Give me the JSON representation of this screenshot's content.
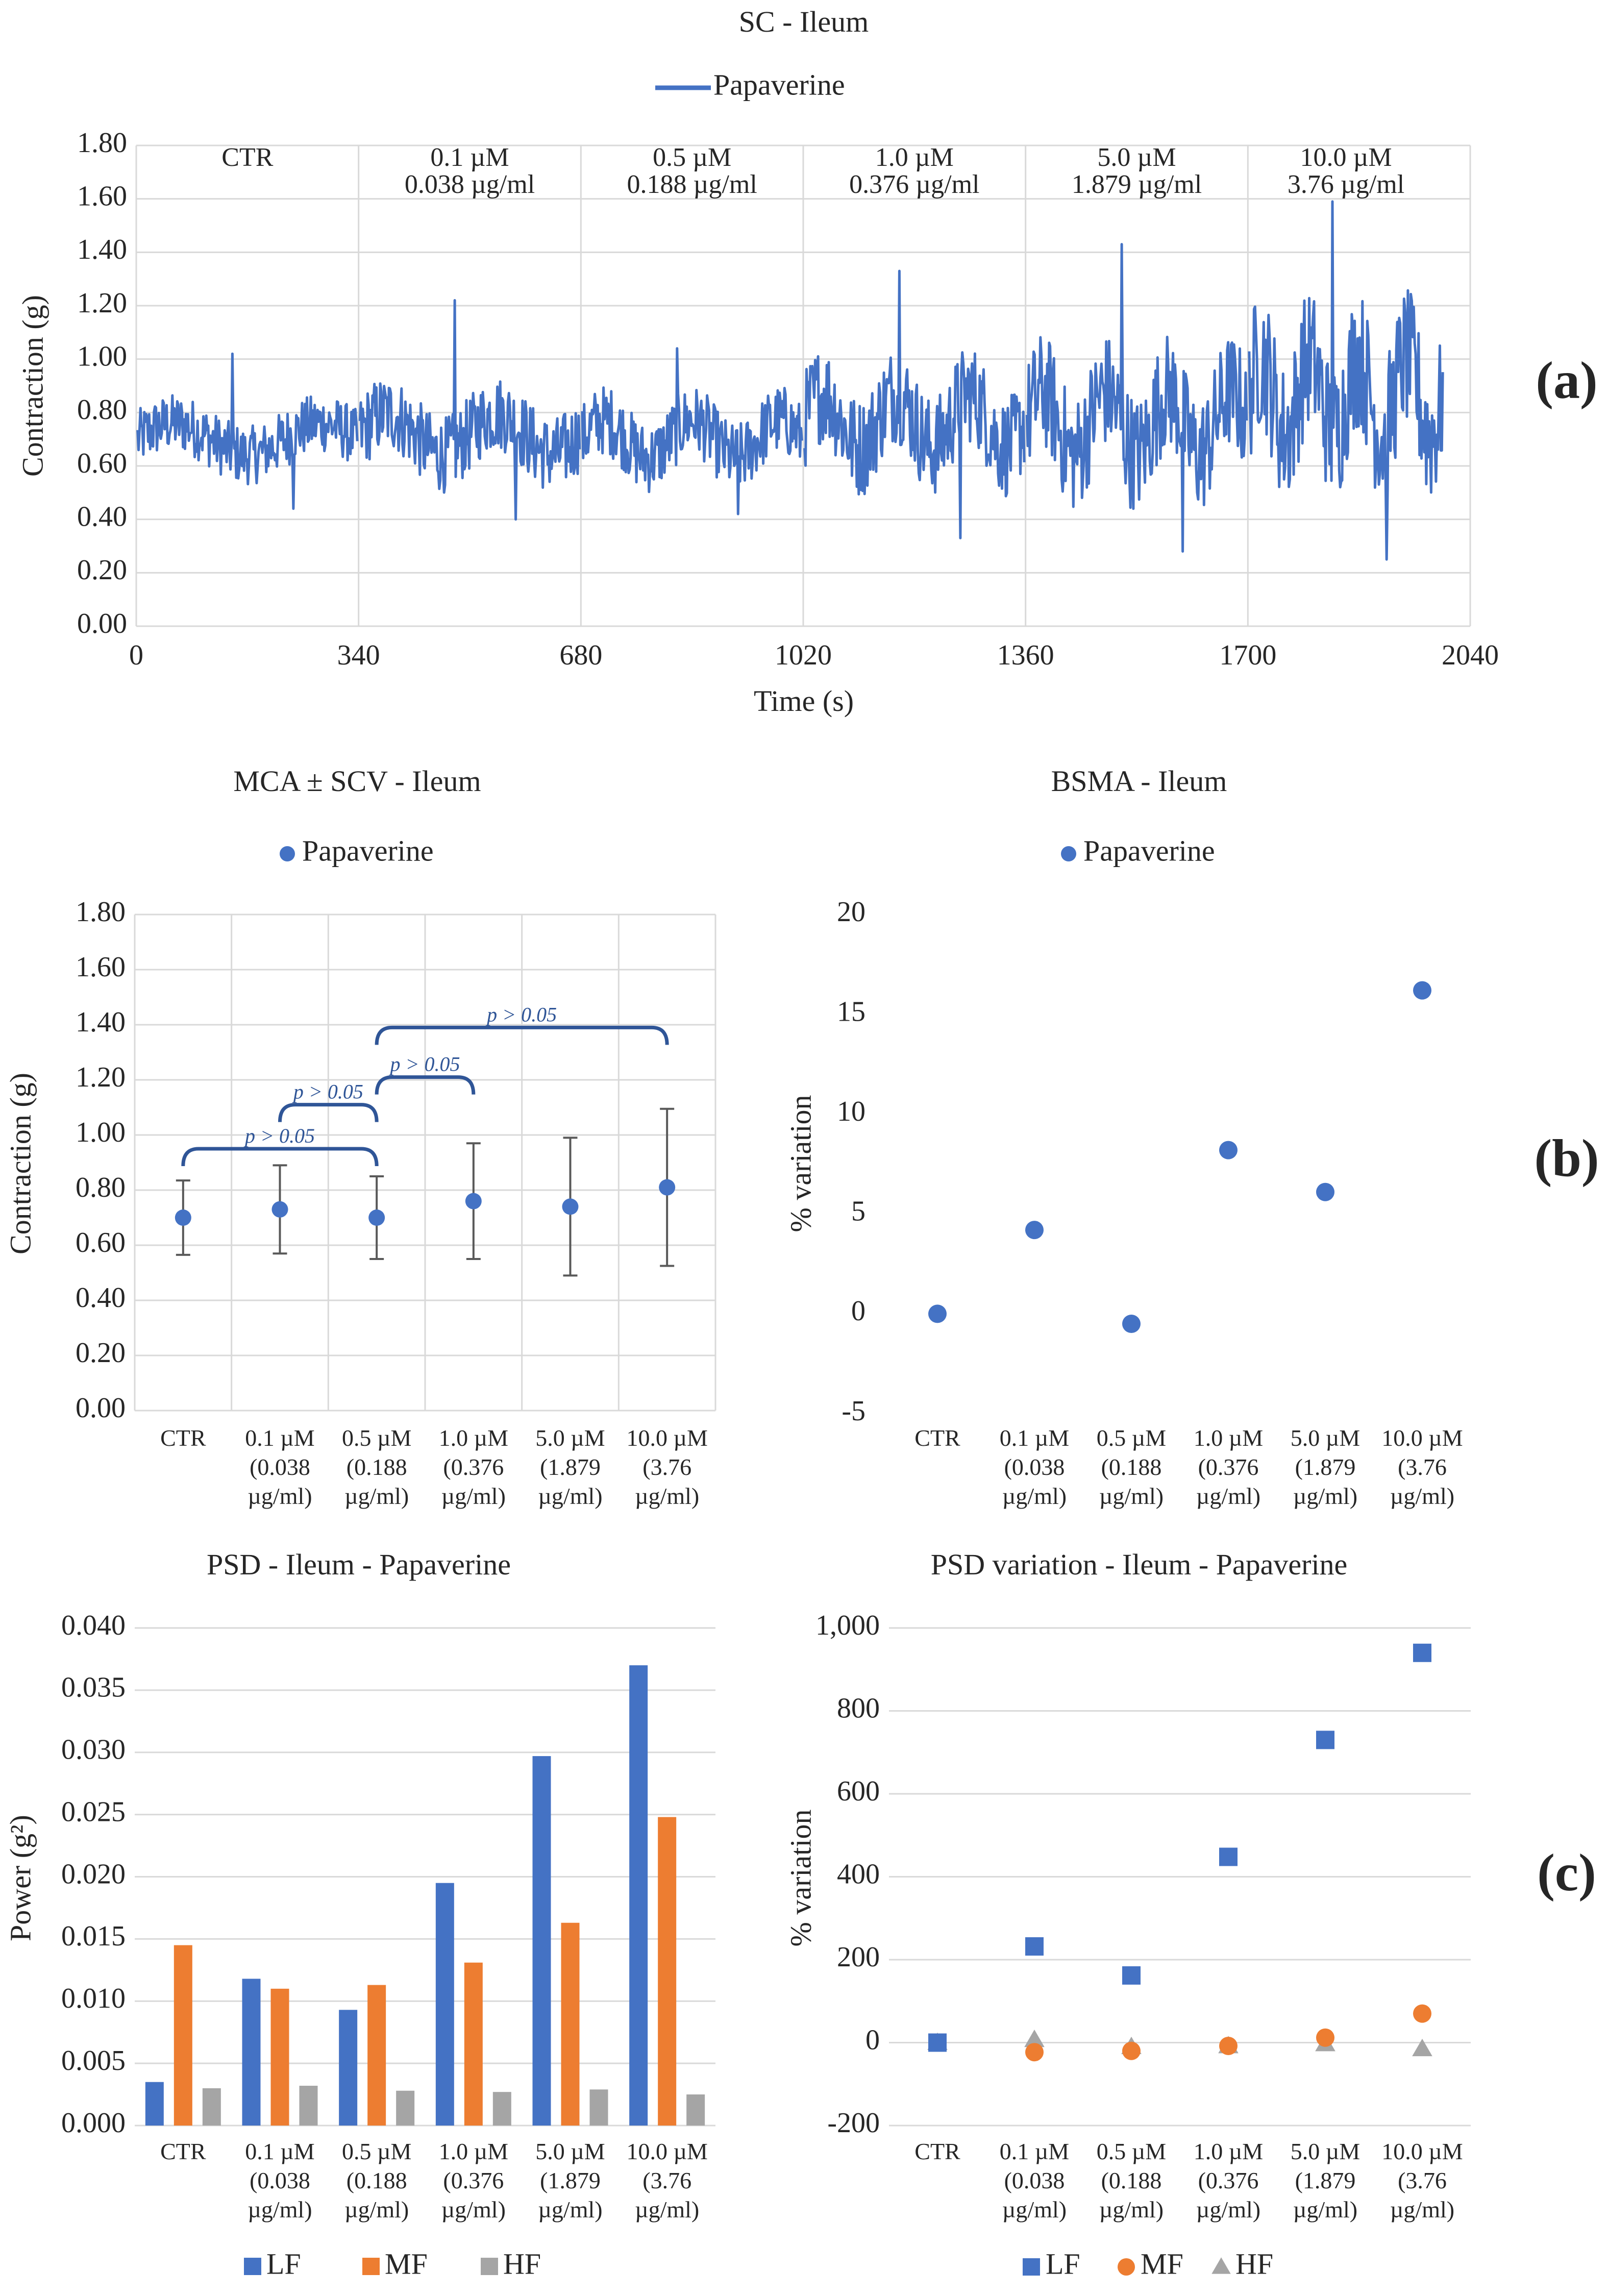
{
  "chart_data": [
    {
      "id": "a",
      "type": "line",
      "title": "SC - Ileum",
      "panel_label": "(a)",
      "legend": [
        "Papaverine"
      ],
      "xlabel": "Time (s)",
      "ylabel": "Contraction (g)",
      "xlim": [
        0,
        2040
      ],
      "ylim": [
        0,
        1.8
      ],
      "x_ticks": [
        "0",
        "340",
        "680",
        "1020",
        "1360",
        "1700",
        "2040"
      ],
      "y_ticks": [
        "0.00",
        "0.20",
        "0.40",
        "0.60",
        "0.80",
        "1.00",
        "1.20",
        "1.40",
        "1.60",
        "1.80"
      ],
      "segments": [
        {
          "label1": "CTR",
          "label2": "",
          "x_start": 0,
          "x_end": 340,
          "base": 0.7,
          "amp": 0.1,
          "peak": 1.02,
          "trough": 0.44
        },
        {
          "label1": "0.1 µM",
          "label2": "0.038 µg/ml",
          "x_start": 340,
          "x_end": 680,
          "base": 0.72,
          "amp": 0.13,
          "peak": 1.22,
          "trough": 0.4
        },
        {
          "label1": "0.5 µM",
          "label2": "0.188 µg/ml",
          "x_start": 680,
          "x_end": 1020,
          "base": 0.7,
          "amp": 0.12,
          "peak": 1.04,
          "trough": 0.42
        },
        {
          "label1": "1.0 µM",
          "label2": "0.376 µg/ml",
          "x_start": 1020,
          "x_end": 1360,
          "base": 0.77,
          "amp": 0.17,
          "peak": 1.33,
          "trough": 0.33
        },
        {
          "label1": "5.0 µM",
          "label2": "1.879 µg/ml",
          "x_start": 1360,
          "x_end": 1700,
          "base": 0.76,
          "amp": 0.2,
          "peak": 1.43,
          "trough": 0.28
        },
        {
          "label1": "10.0 µM",
          "label2": "3.76 µg/ml",
          "x_start": 1700,
          "x_end": 2000,
          "base": 0.86,
          "amp": 0.24,
          "peak": 1.59,
          "trough": 0.25
        }
      ]
    },
    {
      "id": "b1",
      "type": "scatter",
      "title": "MCA ± SCV - Ileum",
      "legend": [
        "Papaverine"
      ],
      "ylabel": "Contraction (g)",
      "ylim": [
        0,
        1.8
      ],
      "y_ticks": [
        "0.00",
        "0.20",
        "0.40",
        "0.60",
        "0.80",
        "1.00",
        "1.20",
        "1.40",
        "1.60",
        "1.80"
      ],
      "categories": [
        [
          "CTR"
        ],
        [
          "0.1 µM",
          "(0.038",
          "µg/ml)"
        ],
        [
          "0.5 µM",
          "(0.188",
          "µg/ml)"
        ],
        [
          "1.0 µM",
          "(0.376",
          "µg/ml)"
        ],
        [
          "5.0 µM",
          "(1.879",
          "µg/ml)"
        ],
        [
          "10.0 µM",
          "(3.76",
          "µg/ml)"
        ]
      ],
      "values": [
        0.7,
        0.73,
        0.7,
        0.76,
        0.74,
        0.81
      ],
      "errors": [
        0.135,
        0.16,
        0.15,
        0.21,
        0.25,
        0.285
      ],
      "significance": [
        {
          "from": 0,
          "to": 2,
          "y": 0.95,
          "label": "p > 0.05"
        },
        {
          "from": 1,
          "to": 2,
          "y": 1.11,
          "label": "p > 0.05"
        },
        {
          "from": 2,
          "to": 3,
          "y": 1.21,
          "label": "p > 0.05"
        },
        {
          "from": 2,
          "to": 5,
          "y": 1.39,
          "label": "p > 0.05"
        }
      ]
    },
    {
      "id": "b2",
      "type": "scatter",
      "title": "BSMA - Ileum",
      "panel_label": "(b)",
      "legend": [
        "Papaverine"
      ],
      "ylabel": "% variation",
      "ylim": [
        -5,
        20
      ],
      "y_ticks": [
        "-5",
        "0",
        "5",
        "10",
        "15",
        "20"
      ],
      "categories": [
        [
          "CTR"
        ],
        [
          "0.1 µM",
          "(0.038",
          "µg/ml)"
        ],
        [
          "0.5 µM",
          "(0.188",
          "µg/ml)"
        ],
        [
          "1.0 µM",
          "(0.376",
          "µg/ml)"
        ],
        [
          "5.0 µM",
          "(1.879",
          "µg/ml)"
        ],
        [
          "10.0 µM",
          "(3.76",
          "µg/ml)"
        ]
      ],
      "values": [
        0,
        4.2,
        -0.5,
        8.2,
        6.1,
        16.2
      ]
    },
    {
      "id": "c1",
      "type": "bar",
      "title": "PSD - Ileum - Papaverine",
      "ylabel": "Power (g²)",
      "ylim": [
        0,
        0.04
      ],
      "y_ticks": [
        "0.000",
        "0.005",
        "0.010",
        "0.015",
        "0.020",
        "0.025",
        "0.030",
        "0.035",
        "0.040"
      ],
      "categories": [
        [
          "CTR"
        ],
        [
          "0.1 µM",
          "(0.038",
          "µg/ml)"
        ],
        [
          "0.5 µM",
          "(0.188",
          "µg/ml)"
        ],
        [
          "1.0 µM",
          "(0.376",
          "µg/ml)"
        ],
        [
          "5.0 µM",
          "(1.879",
          "µg/ml)"
        ],
        [
          "10.0 µM",
          "(3.76",
          "µg/ml)"
        ]
      ],
      "series": [
        {
          "name": "LF",
          "color": "#4472C4",
          "values": [
            0.0035,
            0.0118,
            0.0093,
            0.0195,
            0.0297,
            0.037
          ]
        },
        {
          "name": "MF",
          "color": "#ED7D31",
          "values": [
            0.0145,
            0.011,
            0.0113,
            0.0131,
            0.0163,
            0.0248
          ]
        },
        {
          "name": "HF",
          "color": "#A5A5A5",
          "values": [
            0.003,
            0.0032,
            0.0028,
            0.0027,
            0.0029,
            0.0025
          ]
        }
      ]
    },
    {
      "id": "c2",
      "type": "scatter",
      "title": "PSD variation - Ileum - Papaverine",
      "panel_label": "(c)",
      "ylabel": "% variation",
      "ylim": [
        -200,
        1000
      ],
      "y_ticks": [
        "-200",
        "0",
        "200",
        "400",
        "600",
        "800",
        "1,000"
      ],
      "categories": [
        [
          "CTR"
        ],
        [
          "0.1 µM",
          "(0.038",
          "µg/ml)"
        ],
        [
          "0.5 µM",
          "(0.188",
          "µg/ml)"
        ],
        [
          "1.0 µM",
          "(0.376",
          "µg/ml)"
        ],
        [
          "5.0 µM",
          "(1.879",
          "µg/ml)"
        ],
        [
          "10.0 µM",
          "(3.76",
          "µg/ml)"
        ]
      ],
      "series": [
        {
          "name": "LF",
          "color": "#4472C4",
          "marker": "square",
          "values": [
            0,
            232,
            162,
            448,
            730,
            940
          ]
        },
        {
          "name": "MF",
          "color": "#ED7D31",
          "marker": "circle",
          "values": [
            0,
            -23,
            -20,
            -8,
            12,
            70
          ]
        },
        {
          "name": "HF",
          "color": "#A5A5A5",
          "marker": "triangle",
          "values": [
            0,
            7,
            -10,
            -8,
            -3,
            -15
          ]
        }
      ]
    }
  ]
}
